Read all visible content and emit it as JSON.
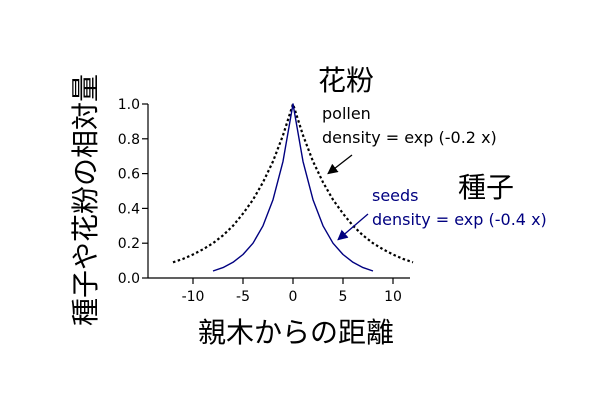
{
  "chart_data": {
    "type": "line",
    "title": "",
    "xlabel": "親木からの距離",
    "ylabel": "種子や花粉の相対量",
    "xlim": [
      -15,
      12
    ],
    "ylim": [
      0,
      1.0
    ],
    "xticks": [
      -10,
      -5,
      0,
      5,
      10
    ],
    "xtick_labels": [
      "-10",
      "-5",
      "0",
      "5",
      "10"
    ],
    "yticks": [
      0.0,
      0.2,
      0.4,
      0.6,
      0.8,
      1.0
    ],
    "ytick_labels": [
      "0.0",
      "0.2",
      "0.4",
      "0.6",
      "0.8",
      "1.0"
    ],
    "grid": false,
    "series": [
      {
        "name": "花粉",
        "color": "#000000",
        "line_style": "dotted",
        "x": [
          -12,
          -11,
          -10,
          -9,
          -8,
          -7,
          -6,
          -5,
          -4,
          -3,
          -2,
          -1,
          0,
          1,
          2,
          3,
          4,
          5,
          6,
          7,
          8,
          9,
          10,
          11,
          12
        ],
        "y": [
          0.09,
          0.11,
          0.135,
          0.165,
          0.2,
          0.245,
          0.3,
          0.37,
          0.45,
          0.55,
          0.67,
          0.82,
          1.0,
          0.82,
          0.67,
          0.55,
          0.45,
          0.37,
          0.3,
          0.245,
          0.2,
          0.165,
          0.135,
          0.11,
          0.09
        ]
      },
      {
        "name": "種子",
        "color": "#000080",
        "line_style": "solid",
        "x": [
          -8,
          -7,
          -6,
          -5,
          -4,
          -3,
          -2,
          -1,
          0,
          1,
          2,
          3,
          4,
          5,
          6,
          7,
          8
        ],
        "y": [
          0.04,
          0.06,
          0.09,
          0.135,
          0.2,
          0.3,
          0.45,
          0.67,
          1.0,
          0.67,
          0.45,
          0.3,
          0.2,
          0.135,
          0.09,
          0.06,
          0.04
        ]
      }
    ],
    "annotations": [
      {
        "series": "花粉",
        "color": "#000000",
        "heading": "花粉",
        "lines": [
          "pollen",
          "density = exp (-0.2 x)"
        ],
        "arrow_to": [
          3.5,
          0.6
        ]
      },
      {
        "series": "種子",
        "color": "#000080",
        "heading": "種子",
        "lines": [
          "seeds",
          "density = exp (-0.4 x)"
        ],
        "arrow_to": [
          4.5,
          0.22
        ]
      }
    ]
  }
}
